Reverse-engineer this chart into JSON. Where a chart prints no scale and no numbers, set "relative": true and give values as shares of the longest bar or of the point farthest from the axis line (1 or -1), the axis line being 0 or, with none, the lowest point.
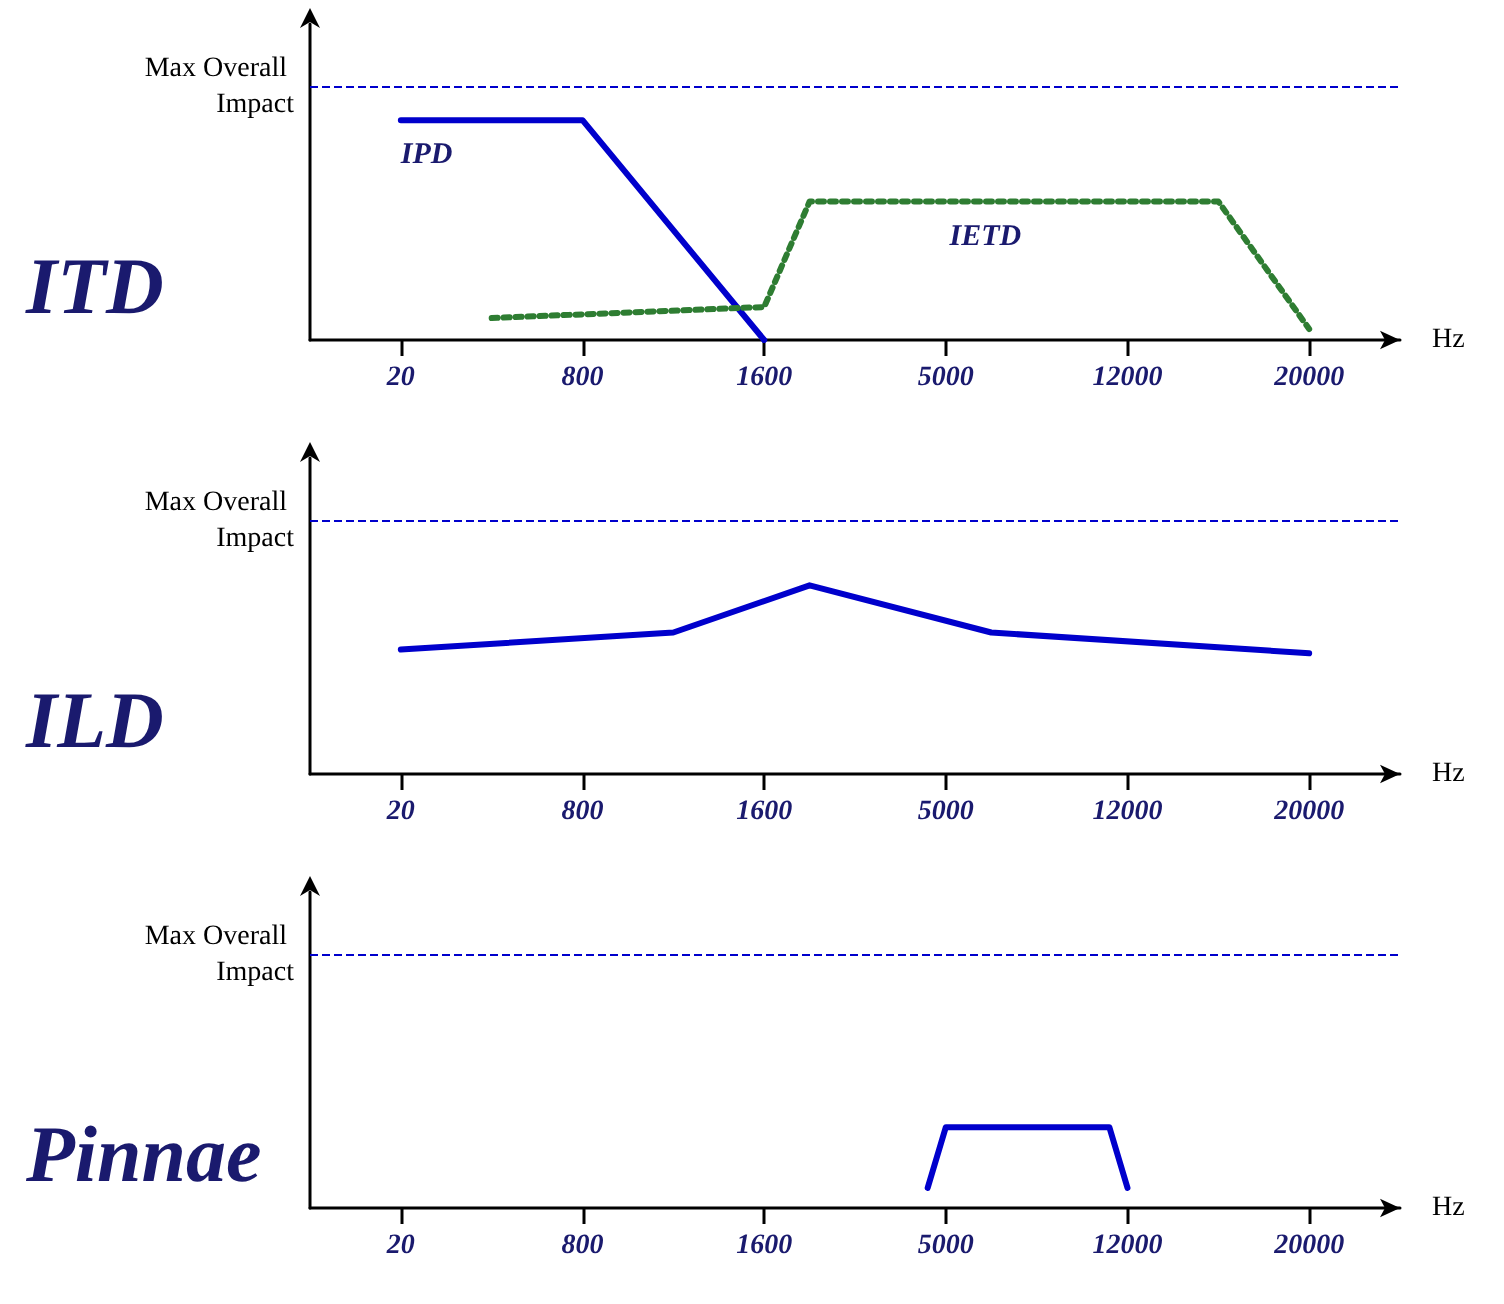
{
  "chart_data": [
    {
      "type": "line",
      "title": "ITD",
      "xlabel": "Hz",
      "relative": true,
      "grid": false,
      "legend": false,
      "marker": "none",
      "categories": [
        null,
        null,
        "20",
        null,
        null,
        null,
        "800",
        null,
        null,
        null,
        "1600",
        null,
        null,
        null,
        "5000",
        null,
        null,
        null,
        "12000",
        null,
        null,
        null,
        "20000",
        null,
        null
      ],
      "ref_lines": [
        {
          "axis": "y",
          "value": 1.15,
          "label": "Max Overall Impact",
          "color": "#0000cc",
          "line_style": "dashed"
        }
      ],
      "series": [
        {
          "name": "IPD",
          "color": "#0000cc",
          "line_style": "solid",
          "values": [
            null,
            null,
            1,
            null,
            null,
            null,
            1,
            null,
            null,
            null,
            0,
            null,
            null,
            null,
            null,
            null,
            null,
            null,
            null,
            null,
            null,
            null,
            null,
            null,
            null
          ]
        },
        {
          "name": "IETD",
          "color": "#2e7d32",
          "line_style": "dotted",
          "values": [
            null,
            null,
            null,
            null,
            0.1,
            null,
            null,
            null,
            null,
            null,
            0.15,
            0.63,
            null,
            null,
            null,
            null,
            null,
            null,
            null,
            null,
            0.63,
            null,
            0.05,
            null,
            null
          ]
        }
      ]
    },
    {
      "type": "line",
      "title": "ILD",
      "xlabel": "Hz",
      "relative": true,
      "grid": false,
      "legend": false,
      "marker": "none",
      "categories": [
        null,
        null,
        "20",
        null,
        null,
        null,
        "800",
        null,
        null,
        null,
        "1600",
        null,
        null,
        null,
        "5000",
        null,
        null,
        null,
        "12000",
        null,
        null,
        null,
        "20000",
        null,
        null
      ],
      "ref_lines": [
        {
          "axis": "y",
          "value": 1.34,
          "label": "Max Overall Impact",
          "color": "#0000cc",
          "line_style": "dashed"
        }
      ],
      "series": [
        {
          "color": "#0000cc",
          "line_style": "solid",
          "values": [
            null,
            null,
            0.66,
            null,
            null,
            null,
            null,
            null,
            0.75,
            null,
            null,
            1,
            null,
            null,
            null,
            0.75,
            null,
            null,
            null,
            null,
            null,
            null,
            0.64,
            null,
            null
          ]
        }
      ]
    },
    {
      "type": "line",
      "title": "Pinnae",
      "xlabel": "Hz",
      "relative": true,
      "grid": false,
      "legend": false,
      "marker": "none",
      "categories": [
        null,
        null,
        null,
        null,
        null,
        "20",
        null,
        null,
        null,
        null,
        null,
        null,
        null,
        null,
        null,
        "800",
        null,
        null,
        null,
        null,
        null,
        null,
        null,
        null,
        null,
        "1600",
        null,
        null,
        null,
        null,
        null,
        null,
        null,
        null,
        null,
        "5000",
        null,
        null,
        null,
        null,
        null,
        null,
        null,
        null,
        null,
        "12000",
        null,
        null,
        null,
        null,
        null,
        null,
        null,
        null,
        null,
        "20000",
        null,
        null,
        null,
        null,
        null
      ],
      "ref_lines": [
        {
          "axis": "y",
          "value": 3.13,
          "label": "Max Overall Impact",
          "color": "#0000cc",
          "line_style": "dashed"
        }
      ],
      "series": [
        {
          "color": "#0000cc",
          "line_style": "solid",
          "values": [
            null,
            null,
            null,
            null,
            null,
            null,
            null,
            null,
            null,
            null,
            null,
            null,
            null,
            null,
            null,
            null,
            null,
            null,
            null,
            null,
            null,
            null,
            null,
            null,
            null,
            null,
            null,
            null,
            null,
            null,
            null,
            null,
            null,
            null,
            0.25,
            1,
            null,
            null,
            null,
            null,
            null,
            null,
            null,
            null,
            1,
            0.25,
            null,
            null,
            null,
            null,
            null,
            null,
            null,
            null,
            null,
            null,
            null,
            null,
            null,
            null,
            null
          ]
        }
      ]
    }
  ]
}
